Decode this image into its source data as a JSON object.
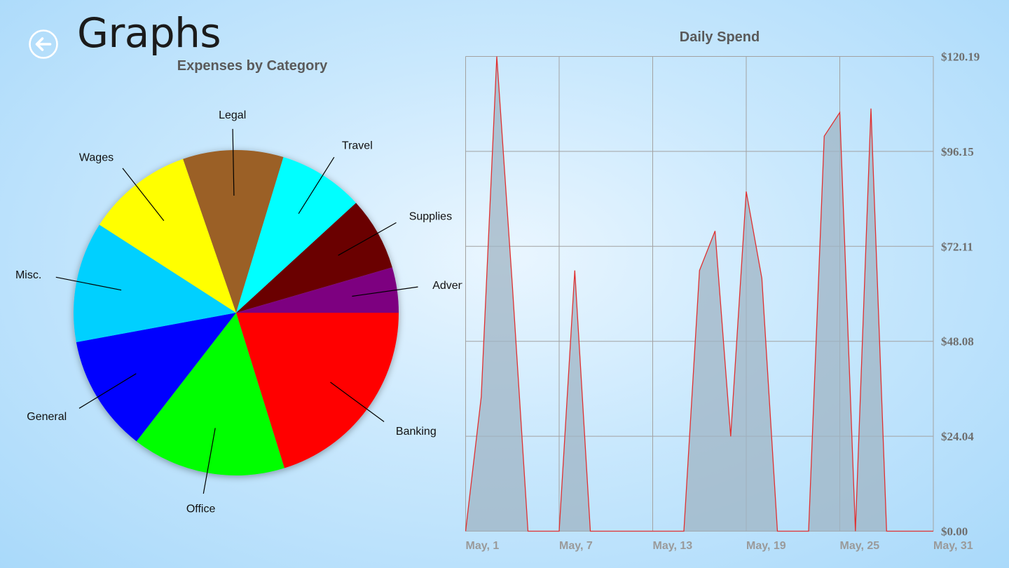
{
  "page": {
    "title": "Graphs",
    "back_icon": "back-arrow-icon"
  },
  "chart_data": [
    {
      "type": "pie",
      "title": "Expenses by Category",
      "slices": [
        {
          "label": "Banking",
          "value": 20.2,
          "color": "#ff0000"
        },
        {
          "label": "Office",
          "value": 15.3,
          "color": "#00ff00"
        },
        {
          "label": "General",
          "value": 11.6,
          "color": "#0000ff"
        },
        {
          "label": "Misc.",
          "value": 12.0,
          "color": "#00d0ff"
        },
        {
          "label": "Wages",
          "value": 10.6,
          "color": "#ffff00"
        },
        {
          "label": "Legal",
          "value": 10.0,
          "color": "#9b6128"
        },
        {
          "label": "Travel",
          "value": 8.5,
          "color": "#00ffff"
        },
        {
          "label": "Supplies",
          "value": 7.3,
          "color": "#6b0000"
        },
        {
          "label": "Advertising",
          "value": 4.5,
          "color": "#7d0080"
        }
      ]
    },
    {
      "type": "area",
      "title": "Daily Spend",
      "y_ticks": [
        "$0.00",
        "$24.04",
        "$48.08",
        "$72.11",
        "$96.15",
        "$120.19"
      ],
      "ylim": [
        0,
        120.19
      ],
      "xlim": [
        1,
        31
      ],
      "x_ticks": [
        {
          "label": "May, 1",
          "day": 1
        },
        {
          "label": "May, 7",
          "day": 7
        },
        {
          "label": "May, 13",
          "day": 13
        },
        {
          "label": "May, 19",
          "day": 19
        },
        {
          "label": "May, 25",
          "day": 25
        },
        {
          "label": "May, 31",
          "day": 31
        }
      ],
      "grid": true,
      "line_color": "#e03030",
      "fill_color": "#9fb4c4",
      "points": [
        [
          1,
          0
        ],
        [
          2,
          34
        ],
        [
          3,
          120.19
        ],
        [
          4,
          62
        ],
        [
          5,
          0
        ],
        [
          6,
          0
        ],
        [
          7,
          0
        ],
        [
          8,
          66
        ],
        [
          9,
          0
        ],
        [
          10,
          0
        ],
        [
          11,
          0
        ],
        [
          12,
          0
        ],
        [
          13,
          0
        ],
        [
          14,
          0
        ],
        [
          15,
          0
        ],
        [
          16,
          66
        ],
        [
          17,
          76
        ],
        [
          18,
          24
        ],
        [
          19,
          86
        ],
        [
          20,
          64
        ],
        [
          21,
          0
        ],
        [
          22,
          0
        ],
        [
          23,
          0
        ],
        [
          24,
          100
        ],
        [
          25,
          106
        ],
        [
          26,
          0
        ],
        [
          27,
          107
        ],
        [
          28,
          0
        ],
        [
          29,
          0
        ],
        [
          30,
          0
        ],
        [
          31,
          0
        ]
      ]
    }
  ]
}
